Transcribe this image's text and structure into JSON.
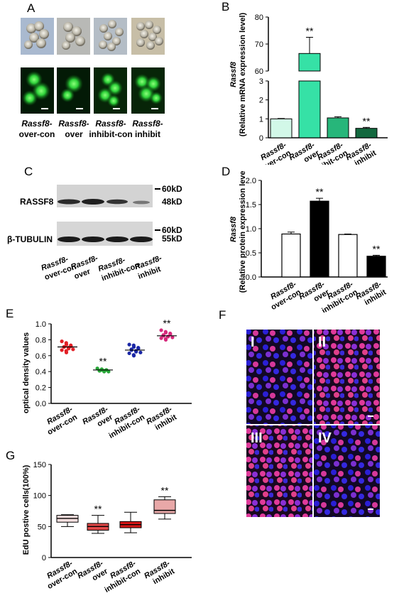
{
  "panel_letters": {
    "a": "A",
    "b": "B",
    "c": "C",
    "d": "D",
    "e": "E",
    "f": "F",
    "g": "G"
  },
  "colors": {
    "gfp_green": "#2fd23a",
    "b_bars": [
      "#d2f8e8",
      "#36e1a6",
      "#27b67a",
      "#13693f"
    ],
    "e_groups": [
      "#e21f26",
      "#27a637",
      "#1a27a6",
      "#d6297c"
    ],
    "g_boxes": [
      "#f6dede",
      "#e04848",
      "#d41616",
      "#e8a8a8"
    ],
    "f_blue": "#2a1fd6",
    "f_pink": "#e03a9a"
  },
  "panel_a": {
    "group_labels": [
      {
        "line1": "Rassf8-",
        "line2": "over-con"
      },
      {
        "line1": "Rassf8-",
        "line2": "over"
      },
      {
        "line1": "Rassf8-",
        "line2": "inhibit-con"
      },
      {
        "line1": "Rassf8-",
        "line2": "inhibit"
      }
    ]
  },
  "panel_b": {
    "ylabel_italic": "Rassf8",
    "ylabel": "(Relative mRNA expression level)",
    "sig": "**"
  },
  "panel_c": {
    "rows": [
      "RASSF8",
      "β-TUBULIN"
    ],
    "markers_top": [
      "60kD",
      "48kD"
    ],
    "markers_bottom": [
      "60kD",
      "55kD"
    ]
  },
  "panel_d": {
    "ylabel_italic": "Rassf8",
    "ylabel": "(Relative protein expression level)",
    "sig": "**"
  },
  "panel_e": {
    "ylabel": "optical density values",
    "sig": "**"
  },
  "panel_f": {
    "quadrants": [
      "I",
      "II",
      "III",
      "IV"
    ]
  },
  "panel_g": {
    "ylabel": "EdU postive cells(100%)",
    "sig": "**"
  },
  "chart_data": [
    {
      "id": "B",
      "type": "bar",
      "categories": [
        "Rassf8-over-con",
        "Rassf8-over",
        "Rassf8-inhibit-con",
        "Rassf8-inhibit"
      ],
      "values": [
        1.0,
        66.5,
        1.05,
        0.5
      ],
      "errors": [
        0.02,
        6.0,
        0.06,
        0.05
      ],
      "ylabel": "Rassf8 (Relative mRNA expression level)",
      "y_axis_break": [
        3,
        60
      ],
      "lower_ticks": [
        0,
        1,
        2,
        3
      ],
      "upper_ticks": [
        60,
        70,
        80
      ],
      "significance": [
        "",
        "**",
        "",
        "**"
      ]
    },
    {
      "id": "D",
      "type": "bar",
      "categories": [
        "Rassf8-over-con",
        "Rassf8-over",
        "Rassf8-inhibit-con",
        "Rassf8-inhibit"
      ],
      "values": [
        0.89,
        1.57,
        0.88,
        0.43
      ],
      "errors": [
        0.04,
        0.06,
        0.01,
        0.02
      ],
      "ylabel": "Rassf8 (Relative protein expression level)",
      "ylim": [
        0,
        2.0
      ],
      "ticks": [
        0.0,
        0.5,
        1.0,
        1.5,
        2.0
      ],
      "significance": [
        "",
        "**",
        "",
        "**"
      ]
    },
    {
      "id": "E",
      "type": "scatter",
      "categories": [
        "Rassf8-over-con",
        "Rassf8-over",
        "Rassf8-inhibit-con",
        "Rassf8-inhibit"
      ],
      "means": [
        0.71,
        0.42,
        0.67,
        0.85
      ],
      "points": [
        [
          0.78,
          0.76,
          0.74,
          0.73,
          0.72,
          0.71,
          0.71,
          0.7,
          0.69,
          0.68,
          0.67,
          0.66,
          0.64
        ],
        [
          0.44,
          0.43,
          0.42,
          0.42,
          0.42,
          0.41,
          0.41,
          0.41,
          0.4,
          0.4
        ],
        [
          0.74,
          0.73,
          0.71,
          0.7,
          0.69,
          0.68,
          0.67,
          0.66,
          0.65,
          0.64,
          0.63,
          0.61,
          0.6
        ],
        [
          0.92,
          0.9,
          0.89,
          0.88,
          0.87,
          0.86,
          0.85,
          0.84,
          0.84,
          0.83,
          0.82,
          0.81,
          0.8
        ]
      ],
      "ylabel": "optical density values",
      "ylim": [
        0.0,
        1.0
      ],
      "ticks": [
        0.0,
        0.2,
        0.4,
        0.6,
        0.8,
        1.0
      ],
      "significance": [
        "",
        "**",
        "",
        "**"
      ]
    },
    {
      "id": "G",
      "type": "box",
      "categories": [
        "Rassf8-over-con",
        "Rassf8-over",
        "Rassf8-inhibit-con",
        "Rassf8-inhibit"
      ],
      "boxes": [
        {
          "min": 50,
          "q1": 57,
          "median": 63,
          "q3": 68,
          "max": 69
        },
        {
          "min": 39,
          "q1": 44,
          "median": 50,
          "q3": 55,
          "max": 68
        },
        {
          "min": 40,
          "q1": 48,
          "median": 53,
          "q3": 58,
          "max": 73
        },
        {
          "min": 62,
          "q1": 71,
          "median": 76,
          "q3": 93,
          "max": 98
        }
      ],
      "ylabel": "EdU postive cells(100%)",
      "ylim": [
        0,
        150
      ],
      "ticks": [
        0,
        50,
        100,
        150
      ],
      "significance": [
        "",
        "**",
        "",
        "**"
      ]
    }
  ]
}
